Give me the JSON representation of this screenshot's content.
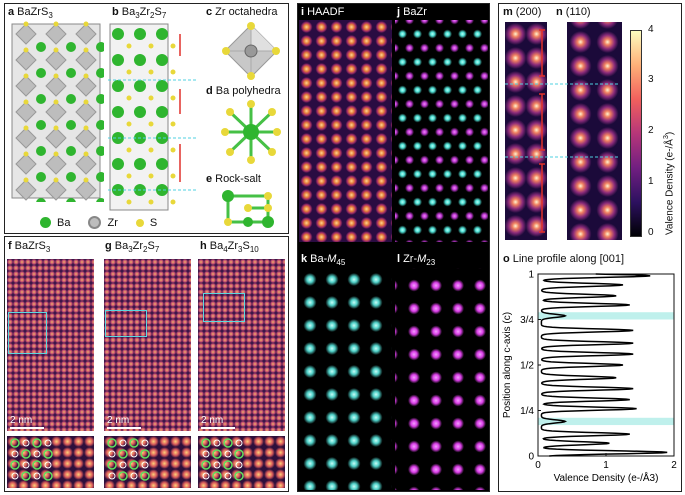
{
  "panels": {
    "a": {
      "letter": "a",
      "title": "BaZrS",
      "sub": "3"
    },
    "b": {
      "letter": "b",
      "title": "Ba",
      "sub1": "3",
      "mid": "Zr",
      "sub2": "2",
      "end": "S",
      "sub3": "7"
    },
    "c": {
      "letter": "c",
      "title": "Zr octahedra"
    },
    "d": {
      "letter": "d",
      "title": "Ba polyhedra"
    },
    "e": {
      "letter": "e",
      "title": "Rock-salt"
    },
    "f": {
      "letter": "f",
      "title": "BaZrS",
      "sub": "3"
    },
    "g": {
      "letter": "g",
      "title": "Ba",
      "sub1": "3",
      "mid": "Zr",
      "sub2": "2",
      "end": "S",
      "sub3": "7"
    },
    "h": {
      "letter": "h",
      "title": "Ba",
      "sub1": "4",
      "mid": "Zr",
      "sub2": "3",
      "end": "S",
      "sub3": "10"
    },
    "i": {
      "letter": "i",
      "title": "HAADF"
    },
    "j": {
      "letter": "j",
      "title": "BaZr"
    },
    "k": {
      "letter": "k",
      "title": "Ba-",
      "italic": "M",
      "sub": "45"
    },
    "l": {
      "letter": "l",
      "title": "Zr-",
      "italic": "M",
      "sub": "23"
    },
    "m": {
      "letter": "m",
      "title": "(200)"
    },
    "n": {
      "letter": "n",
      "title": "(110)"
    },
    "o": {
      "letter": "o",
      "title": "Line profile along [001]"
    }
  },
  "legend": {
    "ba": "Ba",
    "zr": "Zr",
    "s": "S"
  },
  "scalebars": {
    "f": "2 nm",
    "g": "2 nm",
    "h": "2 nm"
  },
  "colorbar": {
    "label": "Valence Density (e-/Å",
    "label_sup": "3",
    "label_close": ")",
    "ticks": [
      "4",
      "3",
      "2",
      "1",
      "0"
    ]
  },
  "colors": {
    "ba": "#3cc43c",
    "zr": "#b8b8b8",
    "s": "#e8d83a",
    "magma_dark": "#170a2e",
    "cyan": "#4fe0d6",
    "magenta": "#d93ee6",
    "highlight": "#bff0ec",
    "red_marker": "#e0302a"
  },
  "chart_data": {
    "type": "line",
    "title": "Line profile along [001]",
    "xlabel": "Valence Density (e-/Å3)",
    "ylabel": "Position along c-axis (c)",
    "xlim": [
      0,
      2
    ],
    "ylim": [
      0,
      1
    ],
    "xticks": [
      "0",
      "1",
      "2"
    ],
    "yticks": [
      "0",
      "1/4",
      "1/2",
      "3/4",
      "1"
    ],
    "highlight_bands": [
      [
        0.17,
        0.21
      ],
      [
        0.75,
        0.79
      ]
    ],
    "peaks_y": [
      0.02,
      0.07,
      0.12,
      0.19,
      0.26,
      0.31,
      0.37,
      0.43,
      0.5,
      0.56,
      0.62,
      0.69,
      0.77,
      0.83,
      0.88,
      0.94,
      0.99
    ],
    "peaks_x": [
      1.85,
      1.0,
      1.3,
      0.35,
      1.4,
      1.3,
      1.35,
      1.1,
      1.2,
      1.35,
      1.35,
      1.35,
      0.35,
      1.3,
      1.1,
      1.2,
      1.6
    ]
  }
}
